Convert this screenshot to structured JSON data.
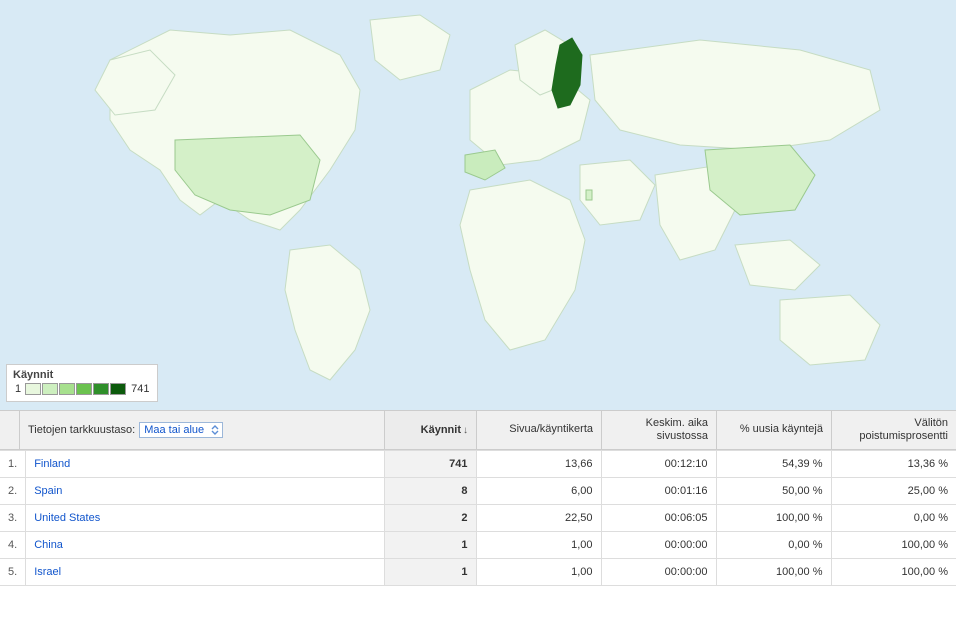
{
  "map": {
    "background_color": "#d8eaf5",
    "land_fill": "#f5fbef",
    "land_stroke": "#c6dcc3",
    "highlight_countries": {
      "Finland": "#1e6b1e",
      "United States": "#d4f0c8",
      "Spain": "#c9ecbd",
      "China": "#d4f0c8",
      "Israel": "#d4f0c8"
    }
  },
  "legend": {
    "title": "Käynnit",
    "min": "1",
    "max": "741",
    "colors": [
      "#e8f7de",
      "#cdefbf",
      "#a7e08e",
      "#6bc24f",
      "#2f8f2a",
      "#0c5a0c"
    ]
  },
  "controls": {
    "detail_label": "Tietojen tarkkuustaso:",
    "detail_selected": "Maa tai alue",
    "sort_column": "Käynnit",
    "columns": {
      "pages_per_visit": "Sivua/käyntikerta",
      "avg_time": "Keskim. aika sivustossa",
      "new_visitors": "% uusia käyntejä",
      "bounce": "Välitön poistumisprosentti"
    },
    "column_widths": {
      "visits": 92,
      "pages_per_visit": 125,
      "avg_time": 115,
      "new_visitors": 115,
      "bounce": 125
    }
  },
  "rows": [
    {
      "idx": "1.",
      "country": "Finland",
      "visits": "741",
      "ppv": "13,66",
      "time": "00:12:10",
      "new": "54,39 %",
      "bounce": "13,36 %"
    },
    {
      "idx": "2.",
      "country": "Spain",
      "visits": "8",
      "ppv": "6,00",
      "time": "00:01:16",
      "new": "50,00 %",
      "bounce": "25,00 %"
    },
    {
      "idx": "3.",
      "country": "United States",
      "visits": "2",
      "ppv": "22,50",
      "time": "00:06:05",
      "new": "100,00 %",
      "bounce": "0,00 %"
    },
    {
      "idx": "4.",
      "country": "China",
      "visits": "1",
      "ppv": "1,00",
      "time": "00:00:00",
      "new": "0,00 %",
      "bounce": "100,00 %"
    },
    {
      "idx": "5.",
      "country": "Israel",
      "visits": "1",
      "ppv": "1,00",
      "time": "00:00:00",
      "new": "100,00 %",
      "bounce": "100,00 %"
    }
  ]
}
